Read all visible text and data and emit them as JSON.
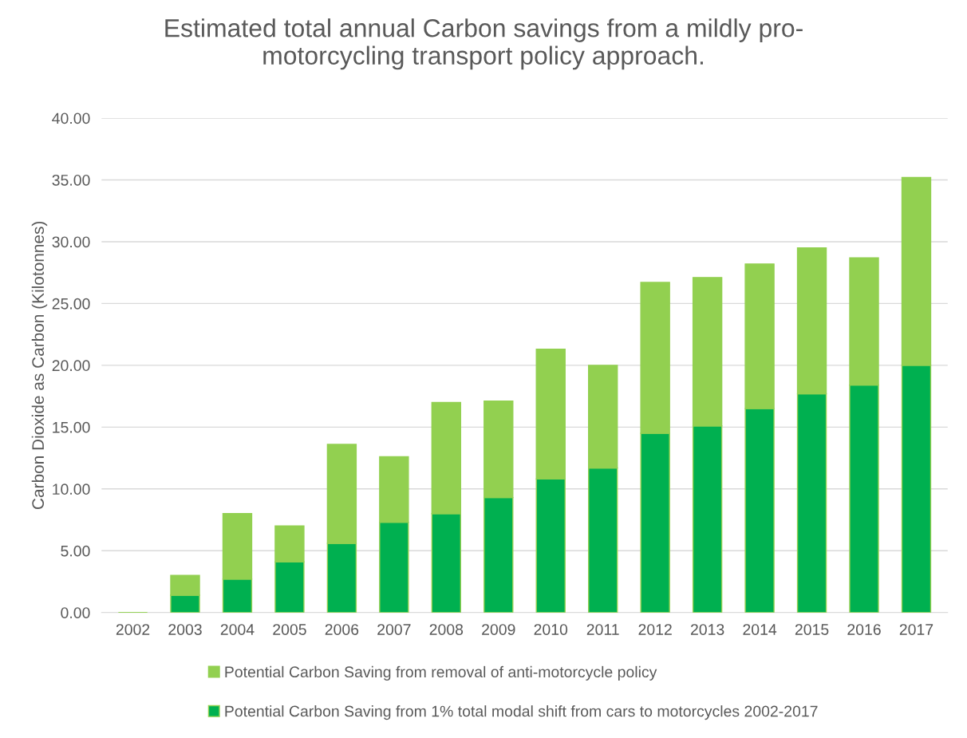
{
  "chart_data": {
    "type": "bar",
    "stacked": true,
    "title": "Estimated total annual Carbon savings from a mildly pro-\nmotorcycling transport policy approach.",
    "ylabel": "Carbon Dioxide as Carbon (Kilotonnes)",
    "categories": [
      "2002",
      "2003",
      "2004",
      "2005",
      "2006",
      "2007",
      "2008",
      "2009",
      "2010",
      "2011",
      "2012",
      "2013",
      "2014",
      "2015",
      "2016",
      "2017"
    ],
    "series": [
      {
        "name": "Potential Carbon Saving from 1% total modal shift from cars to motorcycles 2002-2017",
        "color": "#00b050",
        "values": [
          0,
          1.4,
          2.7,
          4.1,
          5.6,
          7.3,
          8.0,
          9.3,
          10.8,
          11.7,
          14.5,
          15.1,
          16.5,
          17.7,
          18.4,
          20.0
        ]
      },
      {
        "name": "Potential Carbon Saving from removal of anti-motorcycle policy",
        "color": "#92d050",
        "values": [
          0,
          1.6,
          5.3,
          2.9,
          8.0,
          5.3,
          9.0,
          7.8,
          10.5,
          8.3,
          12.2,
          12.0,
          11.7,
          11.8,
          10.3,
          15.2
        ]
      }
    ],
    "ylim": [
      0,
      40
    ],
    "yticks": [
      {
        "value": 0,
        "label": "0.00"
      },
      {
        "value": 5,
        "label": "5.00"
      },
      {
        "value": 10,
        "label": "10.00"
      },
      {
        "value": 15,
        "label": "15.00"
      },
      {
        "value": 20,
        "label": "20.00"
      },
      {
        "value": 25,
        "label": "25.00"
      },
      {
        "value": 30,
        "label": "30.00"
      },
      {
        "value": 35,
        "label": "35.00"
      },
      {
        "value": 40,
        "label": "40.00"
      }
    ],
    "grid": "y",
    "legend": "bottom"
  }
}
